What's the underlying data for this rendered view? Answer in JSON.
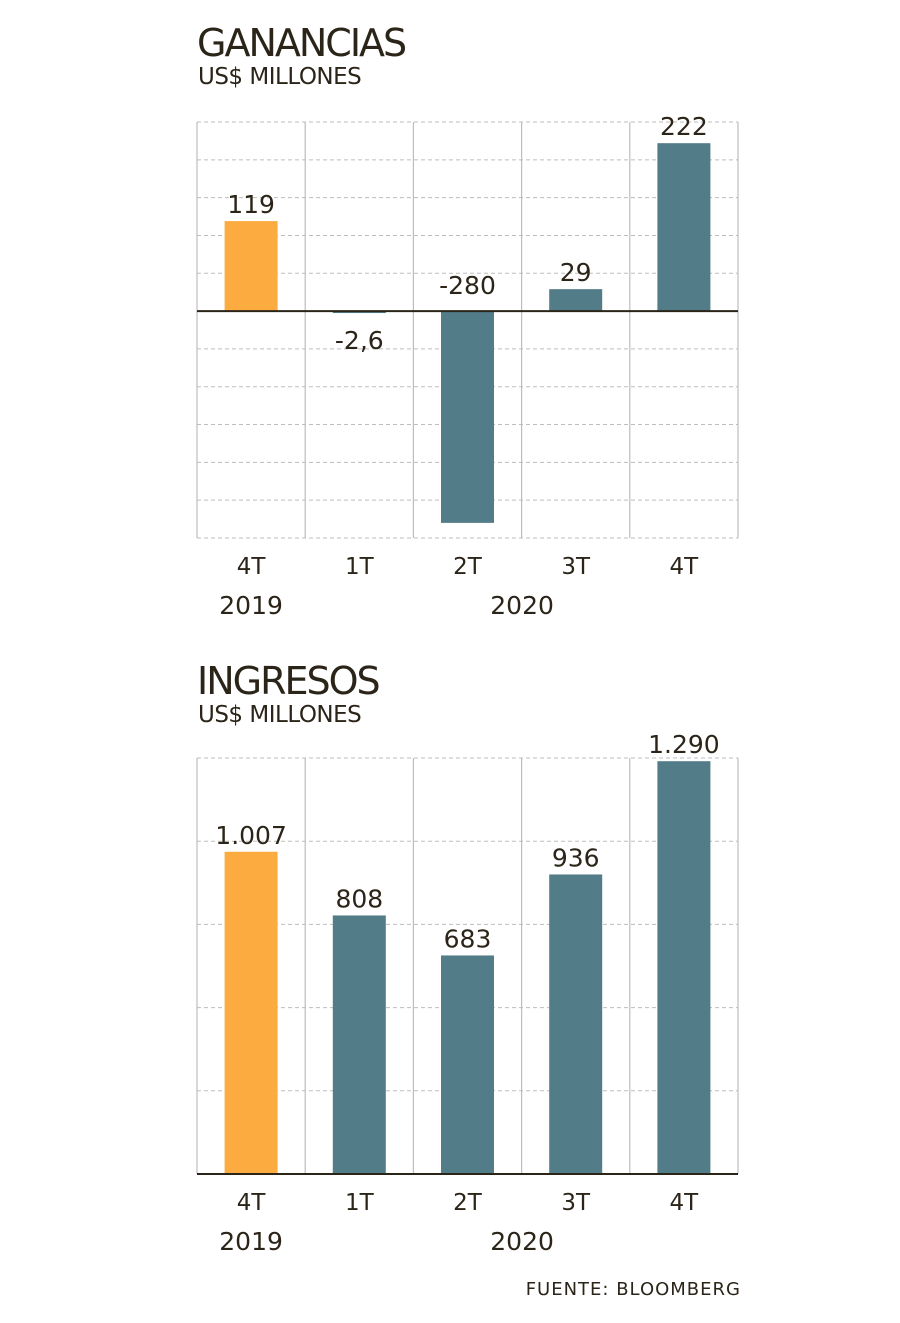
{
  "colors": {
    "highlight": "#FBAB40",
    "bar": "#517C88",
    "grid": "#BDBDBD",
    "axis": "#2b2418",
    "text": "#2b2418"
  },
  "source": "FUENTE: BLOOMBERG",
  "chart_data": [
    {
      "type": "bar",
      "title": "GANANCIAS",
      "subtitle": "US$ MILLONES",
      "categories": [
        "4T",
        "1T",
        "2T",
        "3T",
        "4T"
      ],
      "group_labels": [
        {
          "label": "2019",
          "categories": [
            0
          ]
        },
        {
          "label": "2020",
          "categories": [
            1,
            2,
            3,
            4
          ]
        }
      ],
      "values": [
        119,
        -2.6,
        -280,
        29,
        222
      ],
      "value_labels": [
        "119",
        "-2,6",
        "-280",
        "29",
        "222"
      ],
      "highlight_index": 0,
      "ylim": [
        -300,
        250
      ],
      "grid_step": 50,
      "grid": true
    },
    {
      "type": "bar",
      "title": "INGRESOS",
      "subtitle": "US$ MILLONES",
      "categories": [
        "4T",
        "1T",
        "2T",
        "3T",
        "4T"
      ],
      "group_labels": [
        {
          "label": "2019",
          "categories": [
            0
          ]
        },
        {
          "label": "2020",
          "categories": [
            1,
            2,
            3,
            4
          ]
        }
      ],
      "values": [
        1007,
        808,
        683,
        936,
        1290
      ],
      "value_labels": [
        "1.007",
        "808",
        "683",
        "936",
        "1.290"
      ],
      "highlight_index": 0,
      "ylim": [
        0,
        1300
      ],
      "grid_step": 260,
      "grid": true
    }
  ]
}
